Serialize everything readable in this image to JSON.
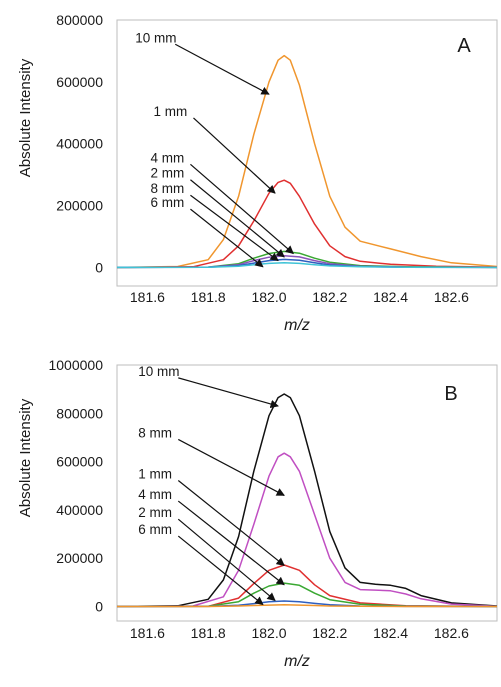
{
  "chart_data": [
    {
      "type": "line",
      "panel_label": "A",
      "xlabel": "m/z",
      "ylabel": "Absolute Intensity",
      "xlim": [
        181.5,
        182.75
      ],
      "ylim": [
        -60000,
        800000
      ],
      "x_ticks": [
        181.6,
        181.8,
        182.0,
        182.2,
        182.4,
        182.6
      ],
      "x_tick_labels": [
        "181.6",
        "181.8",
        "182.0",
        "182.2",
        "182.4",
        "182.6"
      ],
      "y_ticks": [
        0,
        200000,
        400000,
        600000,
        800000
      ],
      "y_tick_labels": [
        "0",
        "200000",
        "400000",
        "600000",
        "800000"
      ],
      "grid": false,
      "frame": true,
      "series": [
        {
          "name": "10 mm",
          "color": "#f0962e",
          "x": [
            181.5,
            181.7,
            181.8,
            181.85,
            181.9,
            181.95,
            182.0,
            182.03,
            182.05,
            182.07,
            182.1,
            182.15,
            182.2,
            182.25,
            182.3,
            182.4,
            182.5,
            182.6,
            182.75
          ],
          "y": [
            0,
            3000,
            25000,
            90000,
            230000,
            430000,
            600000,
            670000,
            685000,
            670000,
            590000,
            400000,
            230000,
            130000,
            85000,
            60000,
            35000,
            15000,
            3000
          ]
        },
        {
          "name": "1 mm",
          "color": "#e03030",
          "x": [
            181.5,
            181.75,
            181.85,
            181.9,
            181.95,
            182.0,
            182.03,
            182.05,
            182.07,
            182.1,
            182.15,
            182.2,
            182.25,
            182.3,
            182.4,
            182.55,
            182.75
          ],
          "y": [
            0,
            2000,
            25000,
            70000,
            150000,
            240000,
            275000,
            282000,
            272000,
            230000,
            140000,
            70000,
            35000,
            20000,
            10000,
            4000,
            1000
          ]
        },
        {
          "name": "4 mm",
          "color": "#3aa832",
          "x": [
            181.5,
            181.8,
            181.9,
            181.95,
            182.0,
            182.05,
            182.1,
            182.15,
            182.2,
            182.3,
            182.45,
            182.75
          ],
          "y": [
            0,
            1000,
            12000,
            30000,
            45000,
            52000,
            46000,
            30000,
            17000,
            6000,
            2000,
            0
          ]
        },
        {
          "name": "2 mm",
          "color": "#8a52b8",
          "x": [
            181.5,
            181.8,
            181.9,
            181.95,
            182.0,
            182.05,
            182.1,
            182.15,
            182.2,
            182.3,
            182.45,
            182.75
          ],
          "y": [
            0,
            1000,
            9000,
            22000,
            33000,
            38000,
            34000,
            22000,
            12000,
            4000,
            1000,
            0
          ]
        },
        {
          "name": "8 mm",
          "color": "#2f5fbf",
          "x": [
            181.5,
            181.8,
            181.9,
            181.95,
            182.0,
            182.05,
            182.1,
            182.15,
            182.2,
            182.3,
            182.45,
            182.75
          ],
          "y": [
            0,
            500,
            6000,
            14000,
            22000,
            26000,
            23000,
            15000,
            8000,
            3000,
            500,
            0
          ]
        },
        {
          "name": "6 mm",
          "color": "#3fc3d6",
          "x": [
            181.5,
            181.8,
            181.9,
            181.95,
            182.0,
            182.05,
            182.1,
            182.15,
            182.2,
            182.3,
            182.45,
            182.75
          ],
          "y": [
            0,
            500,
            4000,
            9000,
            13000,
            15000,
            13000,
            9000,
            5000,
            2000,
            500,
            0
          ]
        }
      ],
      "annotations": [
        {
          "text": "10 mm",
          "x": 181.56,
          "y": 728000,
          "arrow_to": [
            182.0,
            560000
          ]
        },
        {
          "text": "1 mm",
          "x": 181.62,
          "y": 490000,
          "arrow_to": [
            182.02,
            240000
          ]
        },
        {
          "text": "4 mm",
          "x": 181.61,
          "y": 340000,
          "arrow_to": [
            182.08,
            45000
          ]
        },
        {
          "text": "2 mm",
          "x": 181.61,
          "y": 290000,
          "arrow_to": [
            182.05,
            34000
          ]
        },
        {
          "text": "8 mm",
          "x": 181.61,
          "y": 240000,
          "arrow_to": [
            182.03,
            22000
          ]
        },
        {
          "text": "6 mm",
          "x": 181.61,
          "y": 195000,
          "arrow_to": [
            181.98,
            2000
          ]
        }
      ]
    },
    {
      "type": "line",
      "panel_label": "B",
      "xlabel": "m/z",
      "ylabel": "Absolute Intensity",
      "xlim": [
        181.5,
        182.75
      ],
      "ylim": [
        -60000,
        1000000
      ],
      "x_ticks": [
        181.6,
        181.8,
        182.0,
        182.2,
        182.4,
        182.6
      ],
      "x_tick_labels": [
        "181.6",
        "181.8",
        "182.0",
        "182.2",
        "182.4",
        "182.6"
      ],
      "y_ticks": [
        0,
        200000,
        400000,
        600000,
        800000,
        1000000
      ],
      "y_tick_labels": [
        "0",
        "200000",
        "400000",
        "600000",
        "800000",
        "1000000"
      ],
      "grid": false,
      "frame": true,
      "series": [
        {
          "name": "10 mm",
          "color": "#111111",
          "x": [
            181.5,
            181.7,
            181.8,
            181.85,
            181.9,
            181.95,
            182.0,
            182.03,
            182.05,
            182.07,
            182.1,
            182.15,
            182.2,
            182.25,
            182.3,
            182.35,
            182.4,
            182.45,
            182.5,
            182.6,
            182.75
          ],
          "y": [
            0,
            3000,
            30000,
            110000,
            290000,
            560000,
            790000,
            865000,
            880000,
            865000,
            790000,
            560000,
            310000,
            160000,
            100000,
            92000,
            88000,
            75000,
            45000,
            15000,
            2000
          ]
        },
        {
          "name": "8 mm",
          "color": "#c04fc2",
          "x": [
            181.5,
            181.75,
            181.85,
            181.9,
            181.95,
            182.0,
            182.03,
            182.05,
            182.07,
            182.1,
            182.15,
            182.2,
            182.25,
            182.3,
            182.35,
            182.4,
            182.45,
            182.5,
            182.6,
            182.75
          ],
          "y": [
            0,
            2000,
            40000,
            150000,
            340000,
            540000,
            620000,
            635000,
            620000,
            560000,
            380000,
            200000,
            100000,
            70000,
            68000,
            65000,
            52000,
            32000,
            10000,
            1000
          ]
        },
        {
          "name": "1 mm",
          "color": "#e03030",
          "x": [
            181.5,
            181.8,
            181.9,
            181.95,
            182.0,
            182.05,
            182.1,
            182.15,
            182.2,
            182.3,
            182.45,
            182.75
          ],
          "y": [
            0,
            1000,
            35000,
            95000,
            150000,
            172000,
            150000,
            90000,
            45000,
            15000,
            3000,
            0
          ]
        },
        {
          "name": "4 mm",
          "color": "#3aa832",
          "x": [
            181.5,
            181.8,
            181.9,
            181.95,
            182.0,
            182.05,
            182.1,
            182.15,
            182.2,
            182.3,
            182.45,
            182.75
          ],
          "y": [
            0,
            1000,
            20000,
            55000,
            85000,
            97000,
            88000,
            55000,
            28000,
            9000,
            2000,
            0
          ]
        },
        {
          "name": "2 mm",
          "color": "#2f5fbf",
          "x": [
            181.5,
            181.8,
            181.9,
            181.95,
            182.0,
            182.05,
            182.1,
            182.15,
            182.2,
            182.3,
            182.45,
            182.75
          ],
          "y": [
            0,
            500,
            5000,
            12000,
            20000,
            23000,
            20000,
            13000,
            7000,
            2000,
            500,
            0
          ]
        },
        {
          "name": "6 mm",
          "color": "#f0962e",
          "x": [
            181.5,
            181.8,
            181.9,
            181.95,
            182.0,
            182.05,
            182.1,
            182.15,
            182.2,
            182.3,
            182.45,
            182.75
          ],
          "y": [
            0,
            200,
            2000,
            4000,
            6000,
            7000,
            6000,
            4000,
            2000,
            1000,
            200,
            0
          ]
        }
      ],
      "annotations": [
        {
          "text": "10 mm",
          "x": 181.57,
          "y": 955000,
          "arrow_to": [
            182.03,
            830000
          ]
        },
        {
          "text": "8 mm",
          "x": 181.57,
          "y": 700000,
          "arrow_to": [
            182.05,
            460000
          ]
        },
        {
          "text": "1 mm",
          "x": 181.57,
          "y": 530000,
          "arrow_to": [
            182.05,
            170000
          ]
        },
        {
          "text": "4 mm",
          "x": 181.57,
          "y": 445000,
          "arrow_to": [
            182.05,
            90000
          ]
        },
        {
          "text": "2 mm",
          "x": 181.57,
          "y": 370000,
          "arrow_to": [
            182.02,
            25000
          ]
        },
        {
          "text": "6 mm",
          "x": 181.57,
          "y": 300000,
          "arrow_to": [
            181.98,
            8000
          ]
        }
      ]
    }
  ]
}
